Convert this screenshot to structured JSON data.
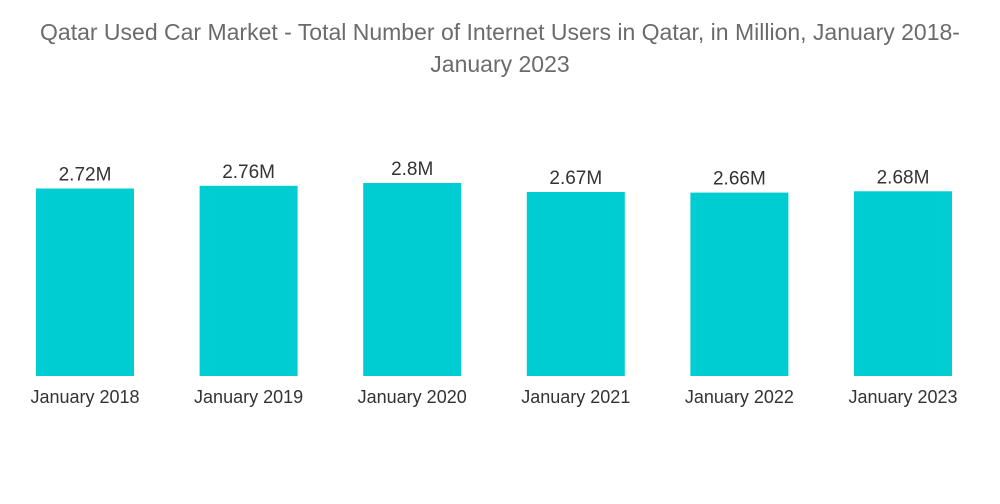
{
  "chart_data": {
    "type": "bar",
    "title": "Qatar Used Car Market - Total Number of Internet Users in Qatar, in Million, January 2018-January 2023",
    "categories": [
      "January 2018",
      "January 2019",
      "January 2020",
      "January 2021",
      "January 2022",
      "January 2023"
    ],
    "values": [
      2.72,
      2.76,
      2.8,
      2.67,
      2.66,
      2.68
    ],
    "data_labels": [
      "2.72M",
      "2.76M",
      "2.8M",
      "2.67M",
      "2.66M",
      "2.68M"
    ],
    "xlabel": "",
    "ylabel": "",
    "ylim": [
      0,
      2.8
    ],
    "grid": false,
    "legend": "none",
    "bar_color": "#00cdd2"
  }
}
